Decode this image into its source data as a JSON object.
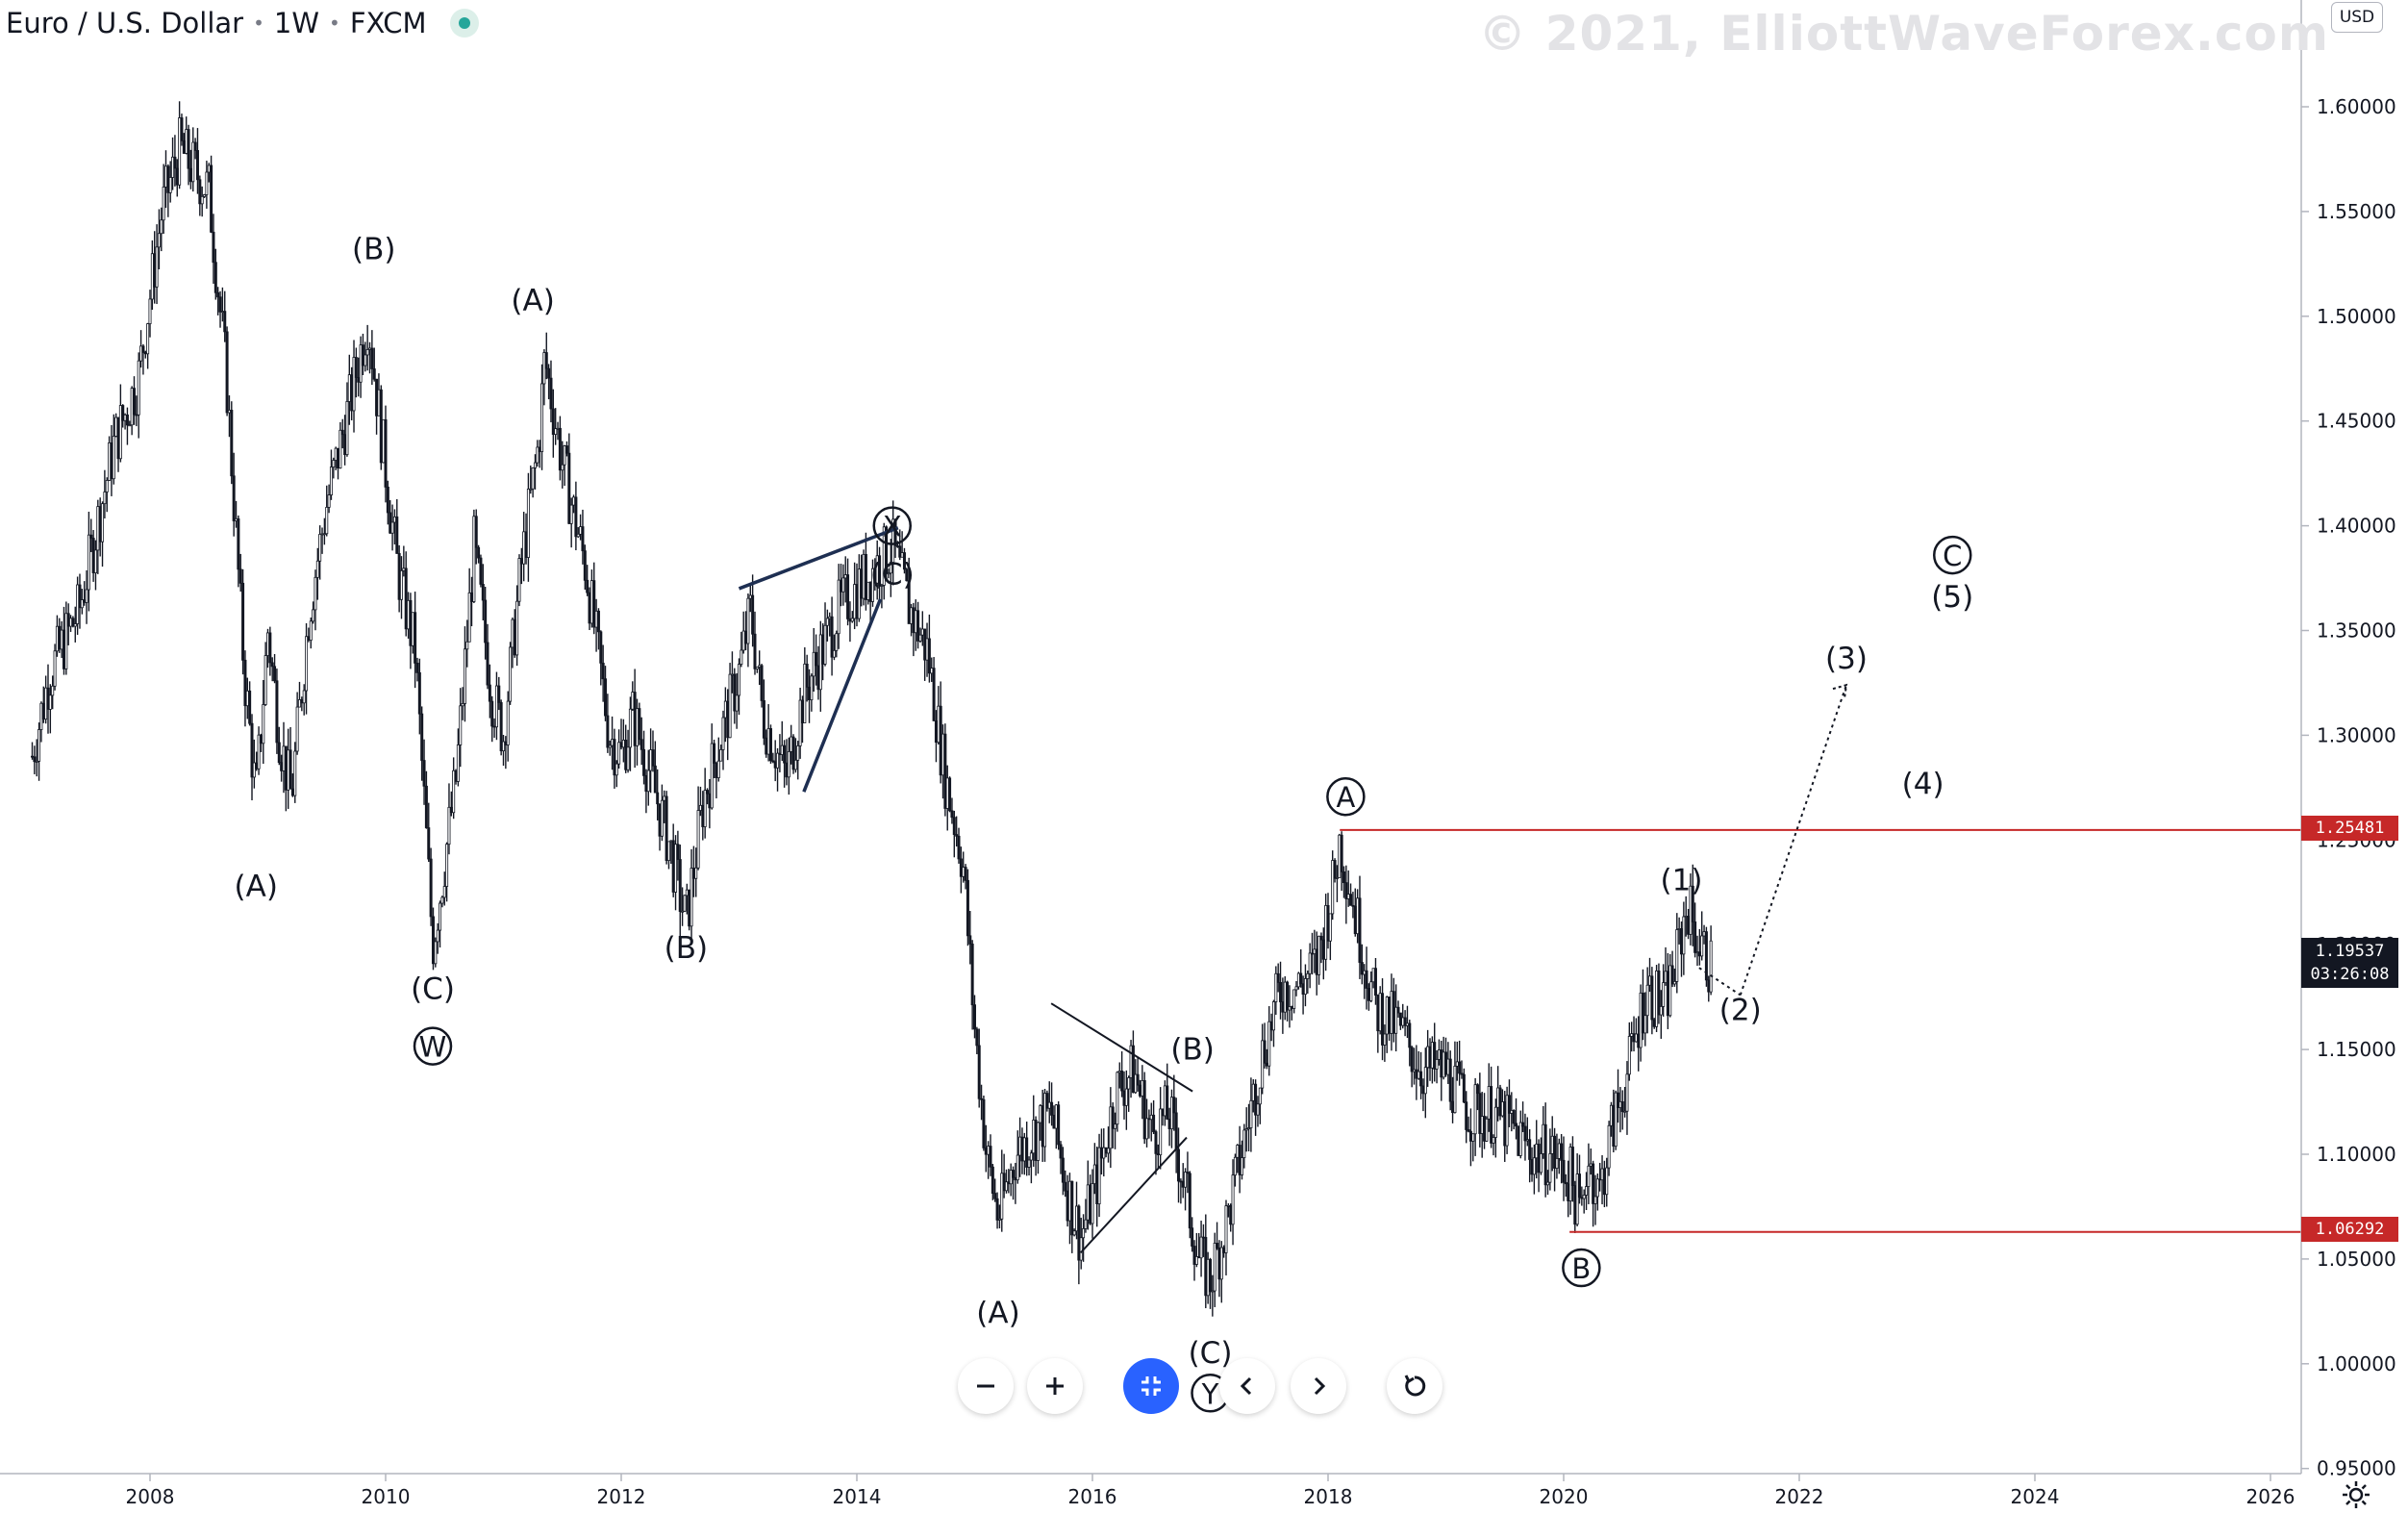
{
  "header": {
    "symbol": "Euro / U.S. Dollar",
    "interval": "1W",
    "exchange": "FXCM"
  },
  "watermark": "© 2021, ElliottWaveForex.com",
  "currency": "USD",
  "price_tags": {
    "upper_level": "1.25481",
    "lower_level": "1.06292",
    "last_price": "1.19537",
    "countdown": "03:26:08"
  },
  "colors": {
    "candle": "#131722",
    "level_line": "#c62828",
    "wedge_line": "#1e2f52",
    "accent": "#2962ff"
  },
  "icons": [
    "minus-icon",
    "plus-icon",
    "reset-scale-icon",
    "chevron-left-icon",
    "chevron-right-icon",
    "refresh-icon",
    "settings-gear-icon"
  ],
  "chart_data": {
    "type": "line",
    "instrument": "EUR/USD weekly",
    "yscale": "linear",
    "ylim": [
      0.95,
      1.65
    ],
    "xlim": [
      2006.9,
      2026.4
    ],
    "grid": false,
    "y_ticks": [
      "1.60000",
      "1.55000",
      "1.50000",
      "1.45000",
      "1.40000",
      "1.35000",
      "1.30000",
      "1.25000",
      "1.20000",
      "1.15000",
      "1.10000",
      "1.05000",
      "1.00000",
      "0.95000"
    ],
    "x_ticks": [
      "2008",
      "2010",
      "2012",
      "2014",
      "2016",
      "2018",
      "2020",
      "2022",
      "2024",
      "2026"
    ],
    "series": [
      {
        "x": [
          2007.0,
          2007.15,
          2007.4,
          2007.7,
          2007.9,
          2008.1,
          2008.25,
          2008.5,
          2008.65,
          2008.8,
          2008.9,
          2009.0,
          2009.1,
          2009.2,
          2009.35,
          2009.5,
          2009.7,
          2009.85,
          2009.95,
          2010.1,
          2010.25,
          2010.4,
          2010.45,
          2010.6,
          2010.75,
          2010.9,
          2011.0,
          2011.15,
          2011.3,
          2011.35,
          2011.5,
          2011.7,
          2011.8,
          2011.9,
          2012.0,
          2012.1,
          2012.25,
          2012.4,
          2012.55,
          2012.7,
          2012.85,
          2013.0,
          2013.1,
          2013.2,
          2013.4,
          2013.55,
          2013.7,
          2013.85,
          2014.0,
          2014.15,
          2014.3,
          2014.45,
          2014.6,
          2014.75,
          2014.9,
          2015.0,
          2015.1,
          2015.2,
          2015.35,
          2015.5,
          2015.65,
          2015.8,
          2015.9,
          2016.05,
          2016.2,
          2016.35,
          2016.5,
          2016.65,
          2016.8,
          2016.9,
          2017.0,
          2017.15,
          2017.3,
          2017.45,
          2017.6,
          2017.75,
          2017.9,
          2018.05,
          2018.1,
          2018.25,
          2018.4,
          2018.6,
          2018.8,
          2019.0,
          2019.2,
          2019.4,
          2019.6,
          2019.75,
          2019.9,
          2020.05,
          2020.15,
          2020.2,
          2020.3,
          2020.4,
          2020.55,
          2020.7,
          2020.85,
          2020.95,
          2021.05,
          2021.15,
          2021.25
        ],
        "y": [
          1.29,
          1.33,
          1.36,
          1.44,
          1.47,
          1.55,
          1.58,
          1.56,
          1.47,
          1.33,
          1.27,
          1.35,
          1.3,
          1.27,
          1.36,
          1.41,
          1.46,
          1.5,
          1.45,
          1.38,
          1.34,
          1.2,
          1.22,
          1.28,
          1.39,
          1.32,
          1.3,
          1.38,
          1.44,
          1.48,
          1.43,
          1.38,
          1.34,
          1.3,
          1.29,
          1.31,
          1.28,
          1.25,
          1.21,
          1.27,
          1.3,
          1.33,
          1.36,
          1.31,
          1.28,
          1.32,
          1.34,
          1.36,
          1.37,
          1.38,
          1.39,
          1.36,
          1.34,
          1.28,
          1.24,
          1.16,
          1.1,
          1.07,
          1.1,
          1.11,
          1.12,
          1.08,
          1.06,
          1.09,
          1.13,
          1.14,
          1.11,
          1.12,
          1.08,
          1.05,
          1.04,
          1.07,
          1.11,
          1.15,
          1.18,
          1.18,
          1.19,
          1.23,
          1.25,
          1.21,
          1.17,
          1.16,
          1.14,
          1.14,
          1.12,
          1.12,
          1.11,
          1.1,
          1.1,
          1.09,
          1.07,
          1.1,
          1.08,
          1.11,
          1.14,
          1.18,
          1.17,
          1.19,
          1.22,
          1.2,
          1.19
        ]
      }
    ],
    "wave_labels": [
      {
        "text": "(B)",
        "x": 2009.9,
        "y": 1.5322
      },
      {
        "text": "(A)",
        "x": 2011.25,
        "y": 1.5077
      },
      {
        "text": "(A)",
        "x": 2008.9,
        "y": 1.2282
      },
      {
        "text": "(C)",
        "x": 2010.4,
        "y": 1.1791
      },
      {
        "text": "W",
        "x": 2010.4,
        "y": 1.1516,
        "circled": true
      },
      {
        "text": "(B)",
        "x": 2012.55,
        "y": 1.1987
      },
      {
        "text": "X",
        "x": 2014.3,
        "y": 1.4,
        "circled": true
      },
      {
        "text": "(C)",
        "x": 2014.3,
        "y": 1.377
      },
      {
        "text": "(A)",
        "x": 2015.2,
        "y": 1.0245
      },
      {
        "text": "(B)",
        "x": 2016.85,
        "y": 1.1503
      },
      {
        "text": "(C)",
        "x": 2017.0,
        "y": 1.0054
      },
      {
        "text": "Y",
        "x": 2017.0,
        "y": 0.986,
        "circled": true
      },
      {
        "text": "A",
        "x": 2018.15,
        "y": 1.2707,
        "circled": true
      },
      {
        "text": "B",
        "x": 2020.15,
        "y": 1.0458,
        "circled": true
      },
      {
        "text": "(1)",
        "x": 2021.0,
        "y": 1.231
      },
      {
        "text": "(2)",
        "x": 2021.5,
        "y": 1.1692
      },
      {
        "text": "(3)",
        "x": 2022.4,
        "y": 1.337
      },
      {
        "text": "(4)",
        "x": 2023.05,
        "y": 1.277
      },
      {
        "text": "C",
        "x": 2023.3,
        "y": 1.386,
        "circled": true
      },
      {
        "text": "(5)",
        "x": 2023.3,
        "y": 1.3663
      }
    ],
    "horizontal_levels": [
      {
        "x_from": 2018.1,
        "x_to": 2026.4,
        "y": 1.25481
      },
      {
        "x_from": 2020.05,
        "x_to": 2026.4,
        "y": 1.06292
      }
    ],
    "trend_lines": [
      {
        "style": "wedge",
        "x1": 2013.0,
        "y1": 1.37,
        "x2": 2014.35,
        "y2": 1.399
      },
      {
        "style": "wedge",
        "x1": 2013.55,
        "y1": 1.273,
        "x2": 2014.2,
        "y2": 1.365
      },
      {
        "style": "triangle",
        "x1": 2015.65,
        "y1": 1.172,
        "x2": 2016.85,
        "y2": 1.13
      },
      {
        "style": "triangle",
        "x1": 2015.9,
        "y1": 1.053,
        "x2": 2016.8,
        "y2": 1.108
      },
      {
        "style": "projection",
        "x1": 2021.15,
        "y1": 1.189,
        "x2": 2021.5,
        "y2": 1.176
      },
      {
        "style": "projection",
        "x1": 2021.5,
        "y1": 1.176,
        "x2": 2022.4,
        "y2": 1.324
      }
    ]
  }
}
